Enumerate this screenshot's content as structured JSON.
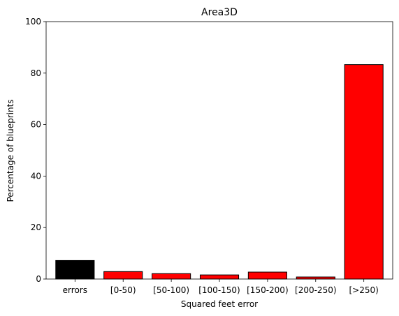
{
  "chart_data": {
    "type": "bar",
    "title": "Area3D",
    "xlabel": "Squared feet error",
    "ylabel": "Percentage of blueprints",
    "categories": [
      "errors",
      "[0-50)",
      "[50-100)",
      "[100-150)",
      "[150-200)",
      "[200-250)",
      "[>250)"
    ],
    "values": [
      7.2,
      2.9,
      2.1,
      1.6,
      2.7,
      0.8,
      83.3
    ],
    "colors": [
      "#000000",
      "#ff0000",
      "#ff0000",
      "#ff0000",
      "#ff0000",
      "#ff0000",
      "#ff0000"
    ],
    "edge_color": "#000000",
    "ylim": [
      0,
      100
    ],
    "yticks": [
      "0",
      "20",
      "40",
      "60",
      "80",
      "100"
    ],
    "grid": false,
    "legend": "none"
  }
}
